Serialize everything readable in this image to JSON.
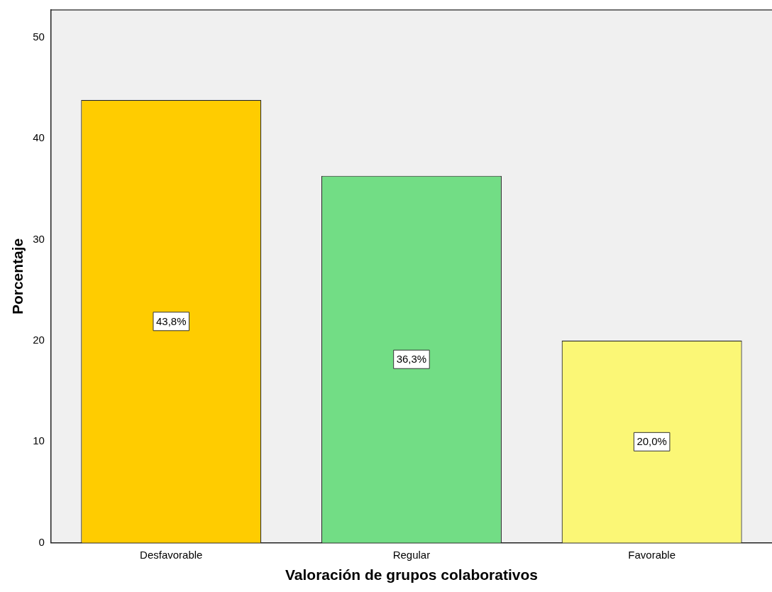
{
  "chart_data": {
    "type": "bar",
    "xlabel": "Valoración de grupos colaborativos",
    "ylabel": "Porcentaje",
    "categories": [
      "Desfavorable",
      "Regular",
      "Favorable"
    ],
    "values": [
      43.8,
      36.3,
      20.0
    ],
    "colors": [
      "#ffcc00",
      "#72dd85",
      "#fbf776"
    ],
    "value_labels": [
      "43,8%",
      "36,3%",
      "20,0%"
    ],
    "ylim": [
      0,
      52.7
    ],
    "yticks": [
      0,
      10,
      20,
      30,
      40,
      50
    ],
    "grid": false,
    "legend": false
  }
}
